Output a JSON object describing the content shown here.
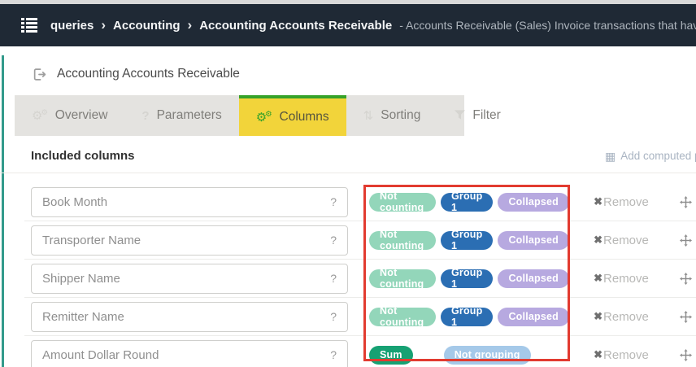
{
  "navbar": {
    "breadcrumb": [
      "queries",
      "Accounting",
      "Accounting Accounts Receivable"
    ],
    "separator": "›",
    "description": "- Accounts Receivable (Sales) Invoice transactions that have been booke"
  },
  "page": {
    "title": "Accounting Accounts Receivable"
  },
  "tabs": [
    {
      "label": "Overview",
      "icon": "gears",
      "active": false
    },
    {
      "label": "Parameters",
      "icon": "question",
      "active": false
    },
    {
      "label": "Columns",
      "icon": "gears",
      "active": true
    },
    {
      "label": "Sorting",
      "icon": "sort",
      "active": false
    },
    {
      "label": "Filter",
      "icon": "filter",
      "active": false
    }
  ],
  "section": {
    "heading": "Included columns",
    "add_computed_label": "Add computed pro"
  },
  "row_actions": {
    "help_label": "?",
    "remove_label": "Remove"
  },
  "columns": [
    {
      "name": "Book Month",
      "badges": [
        {
          "label": "Not counting",
          "color": "mint"
        },
        {
          "label": "Group 1",
          "color": "blue"
        },
        {
          "label": "Collapsed",
          "color": "lavender"
        }
      ]
    },
    {
      "name": "Transporter Name",
      "badges": [
        {
          "label": "Not counting",
          "color": "mint"
        },
        {
          "label": "Group 1",
          "color": "blue"
        },
        {
          "label": "Collapsed",
          "color": "lavender"
        }
      ]
    },
    {
      "name": "Shipper Name",
      "badges": [
        {
          "label": "Not counting",
          "color": "mint"
        },
        {
          "label": "Group 1",
          "color": "blue"
        },
        {
          "label": "Collapsed",
          "color": "lavender"
        }
      ]
    },
    {
      "name": "Remitter Name",
      "badges": [
        {
          "label": "Not counting",
          "color": "mint"
        },
        {
          "label": "Group 1",
          "color": "blue"
        },
        {
          "label": "Collapsed",
          "color": "lavender"
        }
      ]
    },
    {
      "name": "Amount Dollar Round",
      "badges": [
        {
          "label": "Sum",
          "color": "green"
        },
        {
          "label": "Not grouping",
          "color": "sky"
        }
      ]
    }
  ],
  "badge_colors": {
    "mint": "#93d6ba",
    "blue": "#2b6eb3",
    "lavender": "#b7a9e0",
    "green": "#16a173",
    "sky": "#a5c9e9"
  },
  "colors": {
    "navbar_bg": "#1f2935",
    "accent_green": "#36a229",
    "tab_active_bg": "#f2d43a",
    "teal_line": "#339a8b",
    "annotation_red": "#e23b30"
  }
}
